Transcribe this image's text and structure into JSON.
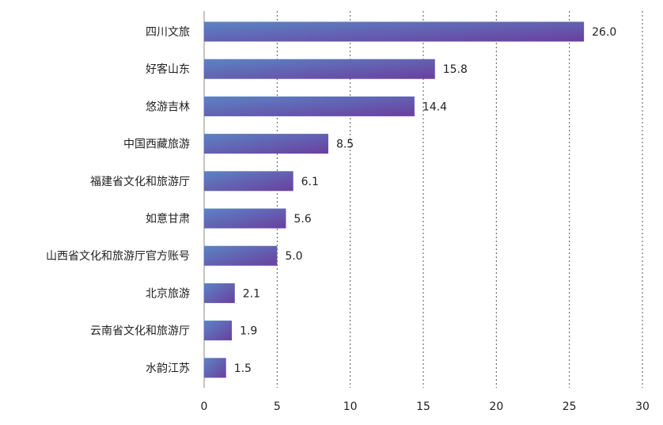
{
  "chart_data": {
    "type": "bar",
    "orientation": "horizontal",
    "categories": [
      "四川文旅",
      "好客山东",
      "悠游吉林",
      "中国西藏旅游",
      "福建省文化和旅游厅",
      "如意甘肃",
      "山西省文化和旅游厅官方账号",
      "北京旅游",
      "云南省文化和旅游厅",
      "水韵江苏"
    ],
    "values": [
      26.0,
      15.8,
      14.4,
      8.5,
      6.1,
      5.6,
      5.0,
      2.1,
      1.9,
      1.5
    ],
    "value_labels": [
      "26.0",
      "15.8",
      "14.4",
      "8.5",
      "6.1",
      "5.6",
      "5.0",
      "2.1",
      "1.9",
      "1.5"
    ],
    "xlim": [
      0,
      30
    ],
    "xticks": [
      0,
      5,
      10,
      15,
      20,
      25,
      30
    ],
    "xtick_labels": [
      "0",
      "5",
      "10",
      "15",
      "20",
      "25",
      "30"
    ],
    "grid": "vertical dotted",
    "title": "",
    "xlabel": "",
    "ylabel": "",
    "colors": {
      "bar_start": "#5b84c4",
      "bar_end": "#6a3fa0",
      "grid": "#555555",
      "text": "#222222"
    }
  }
}
